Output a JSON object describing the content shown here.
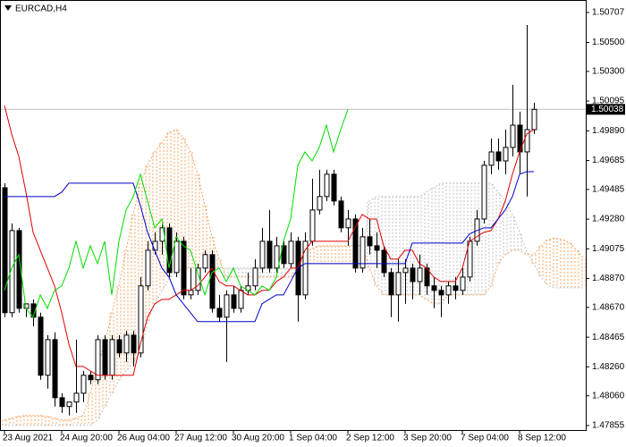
{
  "chart_data": {
    "type": "candlestick",
    "title": "EURCAD,H4",
    "categories": [
      "23 Aug 2021",
      null,
      null,
      null,
      null,
      null,
      null,
      null,
      "24 Aug 20:00",
      null,
      null,
      null,
      null,
      null,
      null,
      null,
      "26 Aug 04:00",
      null,
      null,
      null,
      null,
      null,
      null,
      null,
      "27 Aug 12:00",
      null,
      null,
      null,
      null,
      null,
      null,
      null,
      "30 Aug 20:00",
      null,
      null,
      null,
      null,
      null,
      null,
      null,
      "1 Sep 04:00",
      null,
      null,
      null,
      null,
      null,
      null,
      null,
      "2 Sep 12:00",
      null,
      null,
      null,
      null,
      null,
      null,
      null,
      "3 Sep 20:00",
      null,
      null,
      null,
      null,
      null,
      null,
      null,
      "7 Sep 04:00",
      null,
      null,
      null,
      null,
      null,
      null,
      null,
      "8 Sep 12:00",
      null,
      null,
      null,
      null,
      null,
      null,
      null,
      null,
      null
    ],
    "open": [
      1.49497,
      1.48634,
      1.49201,
      1.48664,
      1.48695,
      1.48603,
      1.48202,
      1.48448,
      1.48047,
      1.47986,
      1.48017,
      1.48078,
      1.48202,
      1.48171,
      1.48448,
      1.48202,
      1.48448,
      1.48356,
      1.48479,
      1.48356,
      1.48819,
      1.49065,
      1.49127,
      1.4922,
      1.48911,
      1.49127,
      1.48757,
      1.48788,
      1.48942,
      1.49035,
      1.48664,
      1.48603,
      1.48757,
      1.48664,
      1.48788,
      1.48819,
      1.48942,
      1.49127,
      1.48942,
      1.49096,
      1.48973,
      1.49127,
      1.48757,
      1.49127,
      1.49343,
      1.49436,
      1.4959,
      1.49405,
      1.4922,
      1.49281,
      1.48942,
      1.49158,
      1.49096,
      1.49065,
      1.48911,
      1.48757,
      1.48911,
      1.48942,
      1.48849,
      1.48942,
      1.48819,
      1.48788,
      1.48757,
      1.48819,
      1.48788,
      1.4888,
      1.49127,
      1.49281,
      1.49652,
      1.49744,
      1.49682,
      1.49775,
      1.49929,
      1.49744,
      1.49898,
      null,
      null,
      null,
      null,
      null,
      null,
      null
    ],
    "high": [
      1.49528,
      1.4925,
      1.4922,
      1.48695,
      1.48726,
      1.48634,
      1.48479,
      1.48498,
      1.48078,
      1.48017,
      1.48448,
      1.48232,
      1.48232,
      1.48479,
      1.48479,
      1.48479,
      1.48479,
      1.4851,
      1.4851,
      1.4888,
      1.49127,
      1.49189,
      1.4925,
      1.4925,
      1.49189,
      1.49158,
      1.48942,
      1.48973,
      1.49065,
      1.49065,
      1.48757,
      1.48788,
      1.48819,
      1.48819,
      1.48911,
      1.49004,
      1.4922,
      1.49343,
      1.49158,
      1.49127,
      1.49189,
      1.49158,
      1.49189,
      1.49559,
      1.49621,
      1.49621,
      1.49621,
      1.49436,
      1.49343,
      1.49312,
      1.4922,
      1.49281,
      1.49189,
      1.49096,
      1.48942,
      1.49004,
      1.49004,
      1.48973,
      1.49035,
      1.48973,
      1.4888,
      1.48819,
      1.48849,
      1.4888,
      1.48942,
      1.49158,
      1.49343,
      1.49682,
      1.49837,
      1.49837,
      1.49898,
      1.50207,
      1.50022,
      1.5062,
      1.50083,
      null,
      null,
      null,
      null,
      null,
      null,
      null
    ],
    "low": [
      1.48603,
      1.48603,
      1.48634,
      1.48603,
      1.48541,
      1.48171,
      1.48109,
      1.47986,
      1.47942,
      1.47924,
      1.47942,
      1.48017,
      1.4814,
      1.4814,
      1.48171,
      1.48171,
      1.48325,
      1.48294,
      1.48263,
      1.48325,
      1.48788,
      1.49035,
      1.49035,
      1.4888,
      1.4888,
      1.48726,
      1.48726,
      1.48757,
      1.48911,
      1.48634,
      1.48572,
      1.48294,
      1.48634,
      1.48634,
      1.48757,
      1.48788,
      1.48911,
      1.48911,
      1.48911,
      1.48942,
      1.48942,
      1.48572,
      1.48726,
      1.49096,
      1.49312,
      1.49405,
      1.49374,
      1.49189,
      1.49096,
      1.48911,
      1.48911,
      1.49035,
      1.48942,
      1.4888,
      1.48603,
      1.48572,
      1.48695,
      1.48726,
      1.48757,
      1.48757,
      1.48664,
      1.48603,
      1.48695,
      1.48726,
      1.48757,
      1.48849,
      1.49096,
      1.4925,
      1.4959,
      1.49621,
      1.4959,
      1.49713,
      1.4959,
      1.49436,
      1.49868,
      null,
      null,
      null,
      null,
      null,
      null,
      null
    ],
    "close": [
      1.48634,
      1.49201,
      1.48664,
      1.48695,
      1.48603,
      1.48202,
      1.48448,
      1.48047,
      1.47986,
      1.48017,
      1.48078,
      1.48202,
      1.48171,
      1.48448,
      1.48202,
      1.48448,
      1.48356,
      1.48479,
      1.48356,
      1.48819,
      1.49065,
      1.49127,
      1.4922,
      1.48911,
      1.49127,
      1.48757,
      1.48788,
      1.48942,
      1.49035,
      1.48664,
      1.48603,
      1.48757,
      1.48664,
      1.48788,
      1.48819,
      1.48942,
      1.49127,
      1.48942,
      1.49096,
      1.48973,
      1.49127,
      1.48757,
      1.49127,
      1.49343,
      1.49436,
      1.4959,
      1.49405,
      1.4922,
      1.49281,
      1.48942,
      1.49158,
      1.49096,
      1.49065,
      1.48911,
      1.48757,
      1.48911,
      1.48942,
      1.48849,
      1.48942,
      1.48819,
      1.48788,
      1.48757,
      1.48819,
      1.48788,
      1.4888,
      1.49127,
      1.49281,
      1.49652,
      1.49744,
      1.49682,
      1.49775,
      1.49929,
      1.49744,
      1.49898,
      1.50038,
      null,
      null,
      null,
      null,
      null,
      null,
      null
    ],
    "bull_color": "#ffffff",
    "bear_color": "#000000",
    "series": [
      {
        "color": "#e00000",
        "values": [
          1.50065,
          1.49868,
          1.49713,
          1.49466,
          1.49189,
          1.49065,
          1.48942,
          1.48819,
          1.48634,
          1.48418,
          1.48263,
          1.48263,
          1.48232,
          1.48202,
          1.48202,
          1.48202,
          1.48202,
          1.48202,
          1.48202,
          1.48418,
          1.48603,
          1.48695,
          1.48726,
          1.48726,
          1.48757,
          1.48788,
          1.48788,
          1.48819,
          1.4888,
          1.48942,
          1.48849,
          1.48819,
          1.48819,
          1.48788,
          1.48757,
          1.48757,
          1.48788,
          1.48788,
          1.48849,
          1.4888,
          1.48942,
          1.48942,
          1.49065,
          1.49127,
          1.49127,
          1.49127,
          1.49127,
          1.49127,
          1.49127,
          1.4922,
          1.49312,
          1.49281,
          1.49281,
          1.49096,
          1.49004,
          1.49004,
          1.49065,
          1.49065,
          1.48973,
          1.48942,
          1.4888,
          1.48849,
          1.48849,
          1.48849,
          1.48942,
          1.49127,
          1.49158,
          1.49189,
          1.49201,
          1.49281,
          1.49405,
          1.4959,
          1.49744,
          1.49868,
          1.49898,
          null,
          null,
          null,
          null,
          null,
          null,
          null
        ]
      },
      {
        "color": "#0000cc",
        "values": [
          1.49436,
          1.49436,
          1.49436,
          1.49436,
          1.49436,
          1.49436,
          1.49436,
          1.49436,
          1.49466,
          1.49528,
          1.49528,
          1.49528,
          1.49528,
          1.49528,
          1.49528,
          1.49528,
          1.49528,
          1.49528,
          1.49528,
          1.49374,
          1.49189,
          1.49065,
          1.48942,
          1.4888,
          1.48757,
          1.48695,
          1.48634,
          1.48572,
          1.48572,
          1.48572,
          1.48572,
          1.48572,
          1.48572,
          1.48572,
          1.48572,
          1.48572,
          1.48695,
          1.48726,
          1.48757,
          1.48757,
          1.48849,
          1.48942,
          1.48973,
          1.48973,
          1.48973,
          1.48973,
          1.48973,
          1.48973,
          1.48973,
          1.48973,
          1.48973,
          1.48973,
          1.48973,
          1.48973,
          1.48973,
          1.48973,
          1.48973,
          1.49115,
          1.49115,
          1.49115,
          1.49115,
          1.49115,
          1.49115,
          1.49115,
          1.49115,
          1.49177,
          1.49201,
          1.4922,
          1.4922,
          1.49281,
          1.49343,
          1.49436,
          1.4959,
          1.49608,
          1.49608,
          null,
          null,
          null,
          null,
          null,
          null,
          null
        ]
      },
      {
        "color": "#00dd00",
        "values": [
          1.48788,
          1.48942,
          1.49035,
          1.48664,
          1.48603,
          1.48757,
          1.48664,
          1.48788,
          1.48819,
          1.48942,
          1.49127,
          1.48942,
          1.49096,
          1.48973,
          1.49127,
          1.48757,
          1.49127,
          1.49343,
          1.49436,
          1.4959,
          1.49405,
          1.4922,
          1.49281,
          1.48942,
          1.49158,
          1.49096,
          1.49065,
          1.48911,
          1.48757,
          1.48911,
          1.48942,
          1.48849,
          1.48942,
          1.48819,
          1.48788,
          1.48757,
          1.48819,
          1.48788,
          1.4888,
          1.49127,
          1.49281,
          1.49652,
          1.49744,
          1.49682,
          1.49775,
          1.49929,
          1.49744,
          1.49898,
          1.50038,
          null,
          null,
          null,
          null,
          null,
          null,
          null,
          null,
          null,
          null,
          null,
          null,
          null,
          null,
          null,
          null,
          null,
          null,
          null,
          null,
          null,
          null,
          null,
          null,
          null,
          null,
          null,
          null,
          null,
          null,
          null,
          null,
          null
        ]
      }
    ],
    "cloud": {
      "up_color": "#f4a460",
      "down_color": "#c0c0c0",
      "span_a": [
        1.47893,
        1.47905,
        1.47918,
        1.47924,
        1.47924,
        1.47924,
        1.47918,
        1.47905,
        1.47893,
        1.47893,
        1.47905,
        1.47924,
        1.48078,
        1.48263,
        1.48418,
        1.48634,
        1.48819,
        1.49065,
        1.49312,
        1.49528,
        1.49652,
        1.49744,
        1.49806,
        1.4988,
        1.49898,
        1.49837,
        1.49744,
        1.4959,
        1.49374,
        1.49158,
        1.49004,
        1.4888,
        1.4888,
        1.4888,
        1.4888,
        1.4888,
        1.4888,
        1.4888,
        1.4888,
        1.4888,
        1.4888,
        1.48942,
        1.49035,
        1.49078,
        1.49096,
        1.49096,
        1.49096,
        1.49096,
        1.49096,
        1.49096,
        1.49096,
        1.48942,
        1.48819,
        1.48757,
        1.48757,
        1.48757,
        1.48757,
        1.48757,
        1.48757,
        1.48726,
        1.48695,
        1.48695,
        1.48757,
        1.48757,
        1.48757,
        1.48757,
        1.48757,
        1.48757,
        1.48819,
        1.48973,
        1.49035,
        1.49065,
        1.49065,
        1.49035,
        1.49035,
        1.49096,
        1.49139,
        1.49151,
        1.49139,
        1.49115,
        1.49065,
        1.49004
      ],
      "span_b": [
        1.47856,
        1.47856,
        1.47856,
        1.47856,
        1.47856,
        1.47856,
        1.47856,
        1.47856,
        1.47856,
        1.47856,
        1.47856,
        1.47856,
        1.47856,
        1.47893,
        1.47986,
        1.48078,
        1.48171,
        1.48232,
        1.48294,
        1.48356,
        1.48572,
        1.48695,
        1.48788,
        1.48868,
        1.48911,
        1.48942,
        1.48942,
        1.48942,
        1.48942,
        1.48942,
        1.48942,
        1.48942,
        1.48942,
        1.48942,
        1.48942,
        1.48942,
        1.48942,
        1.48942,
        1.48942,
        1.48942,
        1.48942,
        1.48942,
        1.48973,
        1.48973,
        1.48973,
        1.48973,
        1.48973,
        1.48973,
        1.48973,
        1.48973,
        1.48973,
        1.49405,
        1.49436,
        1.49436,
        1.49436,
        1.49436,
        1.49436,
        1.49436,
        1.49436,
        1.49466,
        1.49497,
        1.49528,
        1.49528,
        1.49528,
        1.49528,
        1.49528,
        1.49528,
        1.49528,
        1.49528,
        1.49466,
        1.49405,
        1.49312,
        1.49189,
        1.49053,
        1.48973,
        1.4888,
        1.48819,
        1.48806,
        1.48806,
        1.48806,
        1.48806,
        1.48806
      ]
    },
    "last_price": 1.50038,
    "last_price_color": "#c0c0c0",
    "ylim": [
      1.4783,
      1.50793
    ],
    "yticks": [
      1.50707,
      {
        "value": 1.505,
        "label": "1.50500"
      },
      {
        "value": 1.503,
        "label": "1.50300"
      },
      1.50095,
      {
        "value": 1.4989,
        "label": "1.49890"
      },
      1.49685,
      1.49485,
      {
        "value": 1.4928,
        "label": "1.49280"
      },
      1.49075,
      {
        "value": 1.4887,
        "label": "1.48870"
      },
      {
        "value": 1.4867,
        "label": "1.48670"
      },
      1.48465,
      {
        "value": 1.4826,
        "label": "1.48260"
      },
      {
        "value": 1.4806,
        "label": "1.48060"
      },
      1.47855
    ],
    "grid": false
  }
}
